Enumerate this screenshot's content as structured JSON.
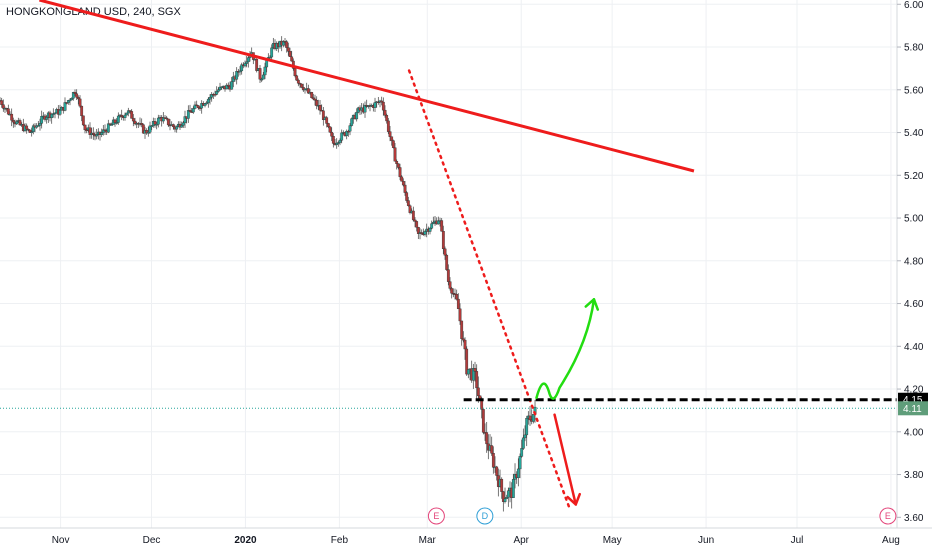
{
  "chart_data": {
    "type": "candlestick",
    "title": "HONGKONGLAND USD, 240, SGX",
    "y_ticks": [
      "6.00",
      "5.80",
      "5.60",
      "5.40",
      "5.20",
      "5.00",
      "4.80",
      "4.60",
      "4.40",
      "4.20",
      "4.00",
      "3.80",
      "3.60"
    ],
    "y_tick_values": [
      6.0,
      5.8,
      5.6,
      5.4,
      5.2,
      5.0,
      4.8,
      4.6,
      4.4,
      4.2,
      4.0,
      3.8,
      3.6
    ],
    "ylim": [
      3.55,
      6.02
    ],
    "x_ticks": [
      "Nov",
      "Dec",
      "2020",
      "Feb",
      "Mar",
      "Apr",
      "May",
      "Jun",
      "Jul",
      "Aug"
    ],
    "x_tick_days": [
      0,
      30,
      61,
      92,
      121,
      152,
      182,
      213,
      243,
      274
    ],
    "xlim_days": [
      -20,
      276
    ],
    "series_path_days": [
      -20,
      -15,
      -10,
      -5,
      0,
      5,
      8,
      12,
      18,
      22,
      28,
      33,
      38,
      43,
      48,
      52,
      56,
      60,
      63,
      66,
      70,
      74,
      78,
      82,
      86,
      90,
      94,
      98,
      102,
      106,
      110,
      114,
      118,
      121,
      125,
      128,
      131,
      134,
      137,
      140,
      143,
      146,
      149,
      152,
      154,
      157
    ],
    "series_path_values": [
      5.55,
      5.45,
      5.4,
      5.48,
      5.5,
      5.6,
      5.42,
      5.38,
      5.45,
      5.5,
      5.4,
      5.47,
      5.42,
      5.5,
      5.55,
      5.6,
      5.62,
      5.72,
      5.78,
      5.65,
      5.8,
      5.82,
      5.65,
      5.58,
      5.5,
      5.35,
      5.4,
      5.5,
      5.52,
      5.55,
      5.3,
      5.1,
      4.92,
      4.95,
      5.0,
      4.7,
      4.6,
      4.3,
      4.25,
      3.98,
      3.85,
      3.7,
      3.72,
      3.9,
      4.05,
      4.1
    ],
    "trendlines": [
      {
        "kind": "resistance",
        "color": "#ee1c1c",
        "from": {
          "day": -7,
          "value": 6.02
        },
        "to": {
          "day": 209,
          "value": 5.22
        }
      },
      {
        "kind": "dotted-trend",
        "color": "#ee1c1c",
        "from": {
          "day": 115,
          "value": 5.69
        },
        "to": {
          "day": 168,
          "value": 3.64
        }
      },
      {
        "kind": "horizontal-level",
        "color": "#000000",
        "from": {
          "day": 133,
          "value": 4.15
        },
        "to": {
          "day": 276,
          "value": 4.15
        }
      }
    ],
    "arrows": [
      {
        "direction": "up",
        "color": "#22dd11",
        "from": {
          "day": 162,
          "value": 4.15
        },
        "to": {
          "day": 176,
          "value": 4.62
        }
      },
      {
        "direction": "down",
        "color": "#ee1c1c",
        "from": {
          "day": 163,
          "value": 4.08
        },
        "to": {
          "day": 170,
          "value": 3.66
        }
      }
    ],
    "price_badges": [
      {
        "label": "4.15",
        "value": 4.15,
        "bg": "#000000",
        "fg": "#ffffff"
      },
      {
        "label": "4.11",
        "value": 4.11,
        "bg": "#5f9d7a",
        "fg": "#ffffff"
      }
    ],
    "last_price_line": {
      "value": 4.11,
      "color": "#26a69a"
    },
    "events": [
      {
        "label": "E",
        "day": 124,
        "color": "#e3457a"
      },
      {
        "label": "D",
        "day": 140,
        "color": "#2f9fd6"
      },
      {
        "label": "E",
        "day": 273,
        "color": "#e3457a"
      }
    ],
    "colors": {
      "up": "#26a69a",
      "down": "#b23a3a",
      "grid": "#eef0f3",
      "axis": "#d6d8dc"
    },
    "grid": true
  }
}
